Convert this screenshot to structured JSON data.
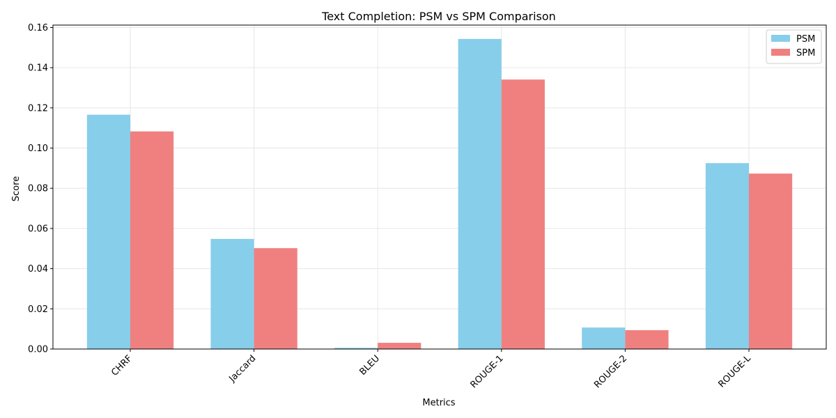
{
  "chart_data": {
    "type": "bar",
    "title": "Text Completion: PSM vs SPM Comparison",
    "xlabel": "Metrics",
    "ylabel": "Score",
    "categories": [
      "CHRF",
      "Jaccard",
      "BLEU",
      "ROUGE-1",
      "ROUGE-2",
      "ROUGE-L"
    ],
    "series": [
      {
        "name": "PSM",
        "color": "#87ceeb",
        "values": [
          0.1166,
          0.0548,
          0.0006,
          0.1543,
          0.0107,
          0.0925
        ]
      },
      {
        "name": "SPM",
        "color": "#f08080",
        "values": [
          0.1083,
          0.0502,
          0.0031,
          0.1341,
          0.0094,
          0.0873
        ]
      }
    ],
    "ylim": [
      0,
      0.1612
    ],
    "yticks": [
      "0.00",
      "0.02",
      "0.04",
      "0.06",
      "0.08",
      "0.10",
      "0.12",
      "0.14",
      "0.16"
    ],
    "grid": true,
    "legend_position": "top-right"
  }
}
